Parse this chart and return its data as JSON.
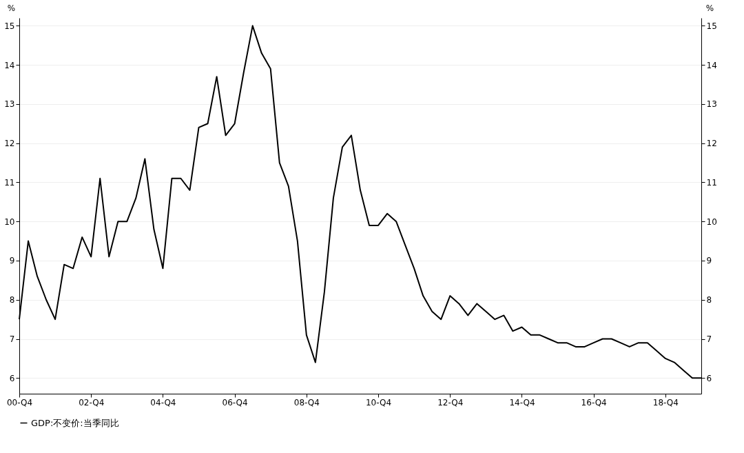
{
  "chart_data": {
    "type": "line",
    "ylabel": "%",
    "y2label": "%",
    "categories": [
      "00-Q4",
      null,
      null,
      null,
      null,
      null,
      null,
      null,
      "02-Q4",
      null,
      null,
      null,
      null,
      null,
      null,
      null,
      "04-Q4",
      null,
      null,
      null,
      null,
      null,
      null,
      null,
      "06-Q4",
      null,
      null,
      null,
      null,
      null,
      null,
      null,
      "08-Q4",
      null,
      null,
      null,
      null,
      null,
      null,
      null,
      "10-Q4",
      null,
      null,
      null,
      null,
      null,
      null,
      null,
      "12-Q4",
      null,
      null,
      null,
      null,
      null,
      null,
      null,
      "14-Q4",
      null,
      null,
      null,
      null,
      null,
      null,
      null,
      "16-Q4",
      null,
      null,
      null,
      null,
      null,
      null,
      null,
      "18-Q4",
      null,
      null,
      null,
      null
    ],
    "series": [
      {
        "name": "GDP:不变价:当季同比",
        "color": "#000000",
        "values": [
          7.5,
          9.5,
          8.6,
          8.0,
          7.5,
          8.9,
          8.8,
          9.6,
          9.1,
          11.1,
          9.1,
          10.0,
          10.0,
          10.6,
          11.6,
          9.8,
          8.8,
          11.1,
          11.1,
          10.8,
          12.4,
          12.5,
          13.7,
          12.2,
          12.5,
          13.8,
          15.0,
          14.3,
          13.9,
          11.5,
          10.9,
          9.5,
          7.1,
          6.4,
          8.2,
          10.6,
          11.9,
          12.2,
          10.8,
          9.9,
          9.9,
          10.2,
          10.0,
          9.4,
          8.8,
          8.1,
          7.7,
          7.5,
          8.1,
          7.9,
          7.6,
          7.9,
          7.7,
          7.5,
          7.6,
          7.2,
          7.3,
          7.1,
          7.1,
          7.0,
          6.9,
          6.9,
          6.8,
          6.8,
          6.9,
          7.0,
          7.0,
          6.9,
          6.8,
          6.9,
          6.9,
          6.7,
          6.5,
          6.4,
          6.2,
          6.0,
          6.0
        ]
      }
    ],
    "ylim": [
      5.6,
      15.2
    ],
    "yticks": [
      6,
      7,
      8,
      9,
      10,
      11,
      12,
      13,
      14,
      15
    ],
    "y2lim": [
      5.6,
      15.2
    ],
    "y2ticks": [
      6,
      7,
      8,
      9,
      10,
      11,
      12,
      13,
      14,
      15
    ],
    "grid": "y",
    "legend": "bottom",
    "marker": "none",
    "line_style": "solid"
  }
}
